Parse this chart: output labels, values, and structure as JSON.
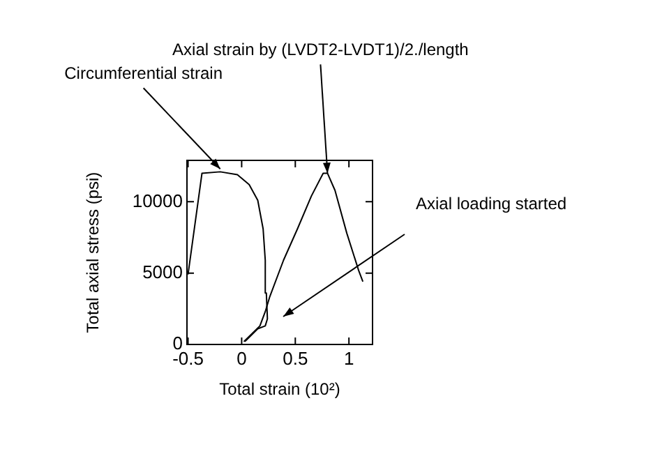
{
  "chart_data": {
    "type": "line",
    "xlabel": "Total strain (10²)",
    "ylabel": "Total axial stress (psi)",
    "xlim": [
      -0.51,
      1.22
    ],
    "ylim": [
      0,
      12900
    ],
    "xticks": [
      -0.5,
      0,
      0.5,
      1
    ],
    "yticks": [
      0,
      5000,
      10000
    ],
    "grid": false,
    "legend": false,
    "marker": "none",
    "line_style": "solid",
    "series": [
      {
        "color": "#000000",
        "x": [
          0.03,
          0.15,
          0.22,
          0.24,
          0.23,
          0.22,
          0.2,
          0.15,
          0.07,
          -0.04,
          -0.2,
          -0.37,
          -0.5
        ],
        "values": [
          200,
          1100,
          1300,
          1800,
          3600,
          5900,
          8100,
          10100,
          11200,
          11900,
          12100,
          12000,
          4900
        ]
      },
      {
        "color": "#000000",
        "x": [
          0.02,
          0.17,
          0.22,
          0.26,
          0.39,
          0.52,
          0.65,
          0.76,
          0.8,
          0.87,
          0.98,
          1.09,
          1.13
        ],
        "values": [
          200,
          1300,
          2300,
          3300,
          5900,
          8100,
          10400,
          12000,
          12000,
          10800,
          7800,
          5200,
          4400
        ]
      }
    ],
    "annotations": [
      {
        "text": "Circumferential strain",
        "x": -0.2,
        "y": 12300
      },
      {
        "text": "Axial strain by (LVDT2-LVDT1)/2./length",
        "x": 0.8,
        "y": 12000
      },
      "Axial loading started"
    ]
  }
}
